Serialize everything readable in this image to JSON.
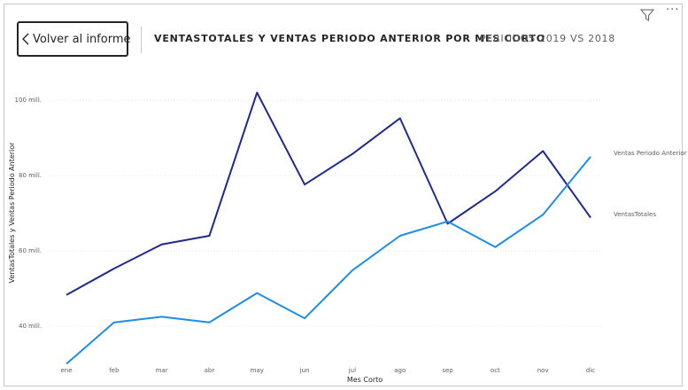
{
  "header": {
    "back_label": "Volver al informe",
    "title": "VENTASTOTALES Y VENTAS PERIODO ANTERIOR POR MES CORTO",
    "subtitle": "PERIODOS 2019 VS 2018"
  },
  "icons": {
    "back": "chevron-left-icon",
    "filter": "filter-icon",
    "more": "more-options-icon"
  },
  "chart_data": {
    "type": "line",
    "title": "VENTASTOTALES Y VENTAS PERIODO ANTERIOR POR MES CORTO",
    "xlabel": "Mes Corto",
    "ylabel": "VentasTotales y Ventas Periodo Anterior",
    "categories": [
      "ene",
      "feb",
      "mar",
      "abr",
      "may",
      "jun",
      "jul",
      "ago",
      "sep",
      "oct",
      "nov",
      "dic"
    ],
    "yticks": [
      40,
      60,
      80,
      100
    ],
    "ytick_labels": [
      "40 mill.",
      "60 mill.",
      "80 mill.",
      "100 mill."
    ],
    "ylim": [
      30,
      105
    ],
    "grid": true,
    "series": [
      {
        "name": "Ventas Periodo Anterior",
        "color": "#1f2a8c",
        "values": [
          48.3,
          55.3,
          61.7,
          64.0,
          102.0,
          77.6,
          85.7,
          95.2,
          67.2,
          75.8,
          86.5,
          68.8
        ]
      },
      {
        "name": "VentasTotales",
        "color": "#1c8de8",
        "values": [
          30.0,
          41.0,
          42.5,
          41.0,
          48.8,
          42.1,
          54.8,
          64.0,
          67.8,
          61.0,
          69.6,
          85.0
        ]
      }
    ]
  }
}
